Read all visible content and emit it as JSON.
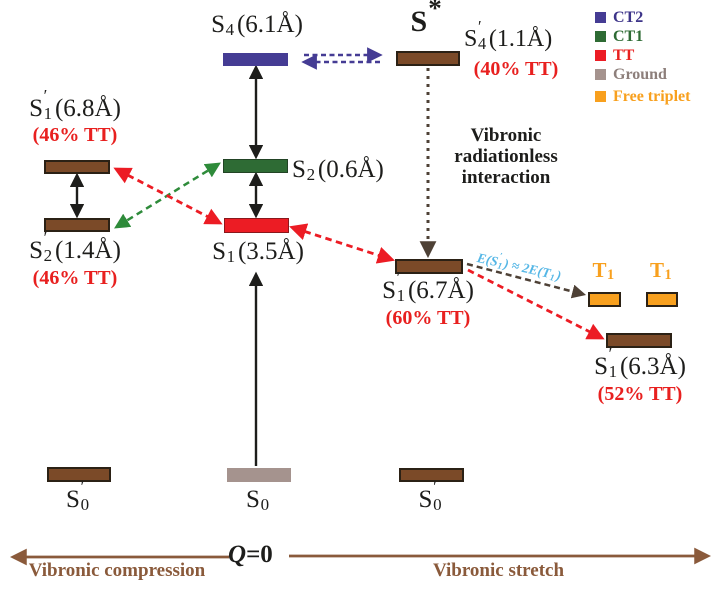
{
  "colors": {
    "ct2_purple": "#453c94",
    "ct1_green": "#2e6b34",
    "tt_red": "#ec1c24",
    "ground_gray": "#a5938e",
    "free_triplet_orange": "#f8a01e",
    "coupled_brown": "#7b4a28",
    "axis_brown": "#8a5a3b",
    "relation_cyan": "#56b7e6",
    "arrow_dark": "#4e4136",
    "tt_text_red": "#e8201f",
    "ground_text_gray": "#8d7f7b",
    "ct2_text": "#3d3489",
    "black": "#1d1d1b"
  },
  "legend": {
    "items": [
      {
        "label": "CT2",
        "swatch": "#453c94",
        "text": "#3d3489"
      },
      {
        "label": "CT1",
        "swatch": "#2e6b34",
        "text": "#2e6b34"
      },
      {
        "label": "TT",
        "swatch": "#ec1c24",
        "text": "#e8201f"
      },
      {
        "label": "Ground",
        "swatch": "#a5938e",
        "text": "#8d7f7b"
      },
      {
        "label": "Free triplet",
        "swatch": "#f8a01e",
        "text": "#f8a01e"
      }
    ]
  },
  "states": {
    "s4": {
      "label": {
        "segments": [
          {
            "t": "S"
          },
          {
            "sub": "4"
          },
          {
            "t": "(6.1Å)"
          }
        ]
      }
    },
    "s_star": {
      "label": {
        "segments": [
          {
            "t": "S"
          },
          {
            "prime": "*"
          }
        ]
      }
    },
    "s4_prime": {
      "label": {
        "segments": [
          {
            "t": "S"
          },
          {
            "prime": "′",
            "sub": "4"
          },
          {
            "t": "(1.1Å)"
          }
        ]
      },
      "tt": "(40% TT)"
    },
    "s1_prime_68": {
      "label": {
        "segments": [
          {
            "t": "S"
          },
          {
            "prime": "′",
            "sub": "1"
          },
          {
            "t": "(6.8Å)"
          }
        ]
      },
      "tt": "(46% TT)"
    },
    "s2_prime_14": {
      "label": {
        "segments": [
          {
            "t": "S"
          },
          {
            "prime": "′",
            "sub": "2"
          },
          {
            "t": "(1.4Å)"
          }
        ]
      },
      "tt": "(46% TT)"
    },
    "s2": {
      "label": {
        "segments": [
          {
            "t": "S"
          },
          {
            "sub": "2"
          },
          {
            "t": "(0.6Å)"
          }
        ]
      }
    },
    "s1": {
      "label": {
        "segments": [
          {
            "t": "S"
          },
          {
            "sub": "1"
          },
          {
            "t": "(3.5Å)"
          }
        ]
      }
    },
    "s1_prime_67": {
      "label": {
        "segments": [
          {
            "t": "S"
          },
          {
            "prime": "′",
            "sub": "1"
          },
          {
            "t": "(6.7Å)"
          }
        ]
      },
      "tt": "(60% TT)"
    },
    "s1_prime_63": {
      "label": {
        "segments": [
          {
            "t": "S"
          },
          {
            "prime": "′",
            "sub": "1"
          },
          {
            "t": "(6.3Å)"
          }
        ]
      },
      "tt": "(52% TT)"
    },
    "t1_a": {
      "label": {
        "segments": [
          {
            "t": "T"
          },
          {
            "sub": "1"
          }
        ]
      }
    },
    "t1_b": {
      "label": {
        "segments": [
          {
            "t": "T"
          },
          {
            "sub": "1"
          }
        ]
      }
    },
    "s0_prime_left": {
      "label": {
        "segments": [
          {
            "t": "S"
          },
          {
            "prime": "′",
            "sub": "0"
          }
        ]
      }
    },
    "s0": {
      "label": {
        "segments": [
          {
            "t": "S"
          },
          {
            "sub": "0"
          }
        ]
      }
    },
    "s0_prime_right": {
      "label": {
        "segments": [
          {
            "t": "S"
          },
          {
            "prime": "′",
            "sub": "0"
          }
        ]
      }
    }
  },
  "annotations": {
    "radiationless": "Vibronic radiationless interaction",
    "energy_relation": {
      "segments": [
        {
          "t": "E(S"
        },
        {
          "prime": "′",
          "sub": "1"
        },
        {
          "t": ") ≈ 2E(T"
        },
        {
          "sub": "1"
        },
        {
          "t": ")"
        }
      ]
    }
  },
  "axis": {
    "q": "Q",
    "q_rest": "=0",
    "left": "Vibronic compression",
    "right": "Vibronic stretch"
  }
}
